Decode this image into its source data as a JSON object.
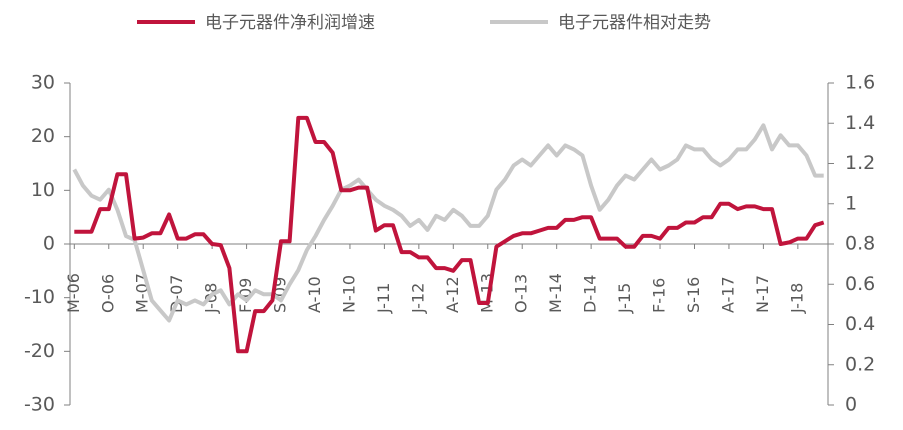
{
  "chart_data": {
    "type": "line",
    "categories": [
      "M-06",
      null,
      null,
      null,
      "O-06",
      null,
      null,
      null,
      "M-07",
      null,
      null,
      null,
      "D-07",
      null,
      null,
      null,
      "J-08",
      null,
      null,
      null,
      "F-09",
      null,
      null,
      null,
      "S-09",
      null,
      null,
      null,
      "A-10",
      null,
      null,
      null,
      "N-10",
      null,
      null,
      null,
      "J-11",
      null,
      null,
      null,
      "J-12",
      null,
      null,
      null,
      "A-12",
      null,
      null,
      null,
      "M-13",
      null,
      null,
      null,
      "O-13",
      null,
      null,
      null,
      "M-14",
      null,
      null,
      null,
      "D-14",
      null,
      null,
      null,
      "J-15",
      null,
      null,
      null,
      "F-16",
      null,
      null,
      null,
      "S-16",
      null,
      null,
      null,
      "A-17",
      null,
      null,
      null,
      "N-17",
      null,
      null,
      null,
      "J-18",
      null,
      null,
      null
    ],
    "series": [
      {
        "name": "电子元器件净利润增速",
        "color": "#c0143c",
        "values": [
          2.3,
          2.3,
          2.3,
          6.5,
          6.5,
          13,
          13,
          1,
          1.2,
          2,
          2,
          5.5,
          1,
          1,
          1.8,
          1.8,
          0,
          -0.2,
          -4.5,
          -20,
          -20,
          -12.5,
          -12.5,
          -10.5,
          0.5,
          0.5,
          23.5,
          23.5,
          19,
          19,
          17,
          10,
          10,
          10.5,
          10.5,
          2.5,
          3.5,
          3.5,
          -1.5,
          -1.5,
          -2.5,
          -2.5,
          -4.5,
          -4.5,
          -5,
          -3,
          -3,
          -11,
          -11,
          -0.5,
          0.5,
          1.5,
          2,
          2,
          2.5,
          3,
          3,
          4.5,
          4.5,
          5,
          5,
          1,
          1,
          1,
          -0.5,
          -0.5,
          1.5,
          1.5,
          1,
          3,
          3,
          4,
          4,
          5,
          5,
          7.5,
          7.5,
          6.5,
          7,
          7,
          6.5,
          6.5,
          0,
          0.3,
          1,
          1,
          3.5,
          4
        ]
      },
      {
        "name": "电子元器件相对走势",
        "color": "#c8c8c8",
        "axis": "y2",
        "values": [
          1.17,
          1.09,
          1.04,
          1.02,
          1.07,
          0.97,
          0.84,
          0.82,
          0.67,
          0.52,
          0.47,
          0.42,
          0.52,
          0.5,
          0.52,
          0.5,
          0.55,
          0.57,
          0.5,
          0.55,
          0.52,
          0.57,
          0.55,
          0.55,
          0.52,
          0.6,
          0.67,
          0.77,
          0.84,
          0.92,
          0.99,
          1.07,
          1.09,
          1.12,
          1.07,
          1.02,
          0.99,
          0.97,
          0.94,
          0.89,
          0.92,
          0.87,
          0.94,
          0.92,
          0.97,
          0.94,
          0.89,
          0.89,
          0.94,
          1.07,
          1.12,
          1.19,
          1.22,
          1.19,
          1.24,
          1.29,
          1.24,
          1.29,
          1.27,
          1.24,
          1.09,
          0.97,
          1.02,
          1.09,
          1.14,
          1.12,
          1.17,
          1.22,
          1.17,
          1.19,
          1.22,
          1.29,
          1.27,
          1.27,
          1.22,
          1.19,
          1.22,
          1.27,
          1.27,
          1.32,
          1.39,
          1.27,
          1.34,
          1.29,
          1.29,
          1.24,
          1.14,
          1.14
        ]
      }
    ],
    "ylim": [
      -30,
      30
    ],
    "yticks": [
      -30,
      -20,
      -10,
      0,
      10,
      20,
      30
    ],
    "y2lim": [
      0,
      1.6
    ],
    "y2ticks": [
      0,
      0.2,
      0.4,
      0.6,
      0.8,
      1,
      1.2,
      1.4,
      1.6
    ]
  }
}
